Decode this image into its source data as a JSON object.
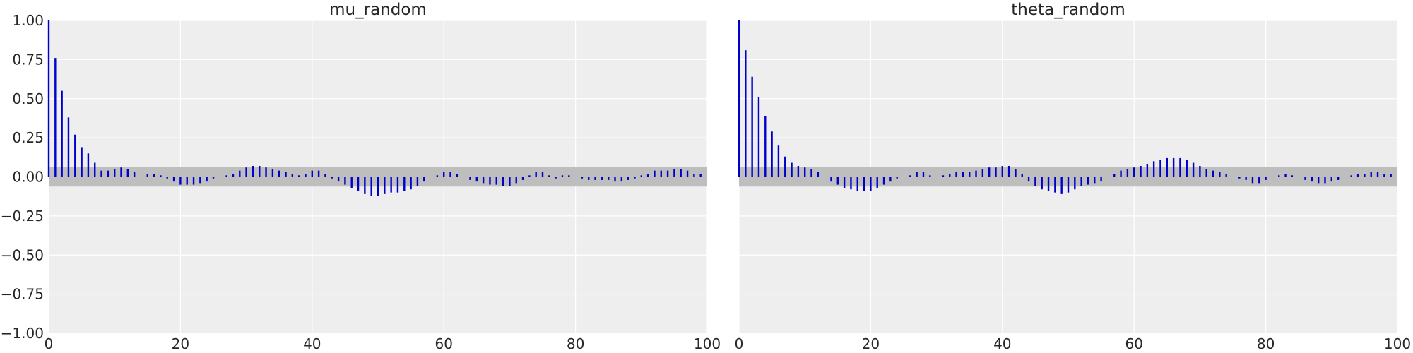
{
  "chart_data": [
    {
      "type": "bar",
      "title": "mu_random",
      "xlabel": "",
      "ylabel": "",
      "xlim": [
        0,
        100
      ],
      "ylim": [
        -1.0,
        1.0
      ],
      "xticks": [
        "0",
        "20",
        "40",
        "60",
        "80",
        "100"
      ],
      "yticks": [
        "−1.00",
        "−0.75",
        "−0.50",
        "−0.25",
        "0.00",
        "0.25",
        "0.50",
        "0.75",
        "1.00"
      ],
      "grid": true,
      "confidence_band": [
        -0.062,
        0.062
      ],
      "x": [
        0,
        1,
        2,
        3,
        4,
        5,
        6,
        7,
        8,
        9,
        10,
        11,
        12,
        13,
        14,
        15,
        16,
        17,
        18,
        19,
        20,
        21,
        22,
        23,
        24,
        25,
        26,
        27,
        28,
        29,
        30,
        31,
        32,
        33,
        34,
        35,
        36,
        37,
        38,
        39,
        40,
        41,
        42,
        43,
        44,
        45,
        46,
        47,
        48,
        49,
        50,
        51,
        52,
        53,
        54,
        55,
        56,
        57,
        58,
        59,
        60,
        61,
        62,
        63,
        64,
        65,
        66,
        67,
        68,
        69,
        70,
        71,
        72,
        73,
        74,
        75,
        76,
        77,
        78,
        79,
        80,
        81,
        82,
        83,
        84,
        85,
        86,
        87,
        88,
        89,
        90,
        91,
        92,
        93,
        94,
        95,
        96,
        97,
        98,
        99
      ],
      "values": [
        1.0,
        0.76,
        0.55,
        0.38,
        0.27,
        0.19,
        0.15,
        0.09,
        0.04,
        0.04,
        0.05,
        0.06,
        0.05,
        0.03,
        0.0,
        0.02,
        0.02,
        0.01,
        -0.01,
        -0.03,
        -0.05,
        -0.05,
        -0.05,
        -0.04,
        -0.03,
        -0.01,
        0.0,
        0.01,
        0.02,
        0.04,
        0.06,
        0.07,
        0.07,
        0.06,
        0.05,
        0.04,
        0.03,
        0.02,
        0.01,
        0.02,
        0.04,
        0.04,
        0.02,
        -0.01,
        -0.03,
        -0.05,
        -0.07,
        -0.09,
        -0.11,
        -0.12,
        -0.12,
        -0.11,
        -0.1,
        -0.1,
        -0.09,
        -0.08,
        -0.06,
        -0.03,
        0.0,
        0.01,
        0.03,
        0.03,
        0.02,
        0.0,
        -0.02,
        -0.03,
        -0.04,
        -0.05,
        -0.05,
        -0.06,
        -0.06,
        -0.04,
        -0.02,
        0.01,
        0.03,
        0.03,
        0.01,
        -0.01,
        0.01,
        0.01,
        0.0,
        -0.01,
        -0.02,
        -0.02,
        -0.02,
        -0.02,
        -0.03,
        -0.03,
        -0.02,
        -0.01,
        0.01,
        0.02,
        0.04,
        0.04,
        0.04,
        0.05,
        0.05,
        0.04,
        0.02,
        0.02
      ]
    },
    {
      "type": "bar",
      "title": "theta_random",
      "xlabel": "",
      "ylabel": "",
      "xlim": [
        0,
        100
      ],
      "ylim": [
        -1.0,
        1.0
      ],
      "xticks": [
        "0",
        "20",
        "40",
        "60",
        "80",
        "100"
      ],
      "grid": true,
      "confidence_band": [
        -0.062,
        0.062
      ],
      "x": [
        0,
        1,
        2,
        3,
        4,
        5,
        6,
        7,
        8,
        9,
        10,
        11,
        12,
        13,
        14,
        15,
        16,
        17,
        18,
        19,
        20,
        21,
        22,
        23,
        24,
        25,
        26,
        27,
        28,
        29,
        30,
        31,
        32,
        33,
        34,
        35,
        36,
        37,
        38,
        39,
        40,
        41,
        42,
        43,
        44,
        45,
        46,
        47,
        48,
        49,
        50,
        51,
        52,
        53,
        54,
        55,
        56,
        57,
        58,
        59,
        60,
        61,
        62,
        63,
        64,
        65,
        66,
        67,
        68,
        69,
        70,
        71,
        72,
        73,
        74,
        75,
        76,
        77,
        78,
        79,
        80,
        81,
        82,
        83,
        84,
        85,
        86,
        87,
        88,
        89,
        90,
        91,
        92,
        93,
        94,
        95,
        96,
        97,
        98,
        99
      ],
      "values": [
        1.0,
        0.81,
        0.64,
        0.51,
        0.39,
        0.29,
        0.2,
        0.13,
        0.09,
        0.07,
        0.06,
        0.05,
        0.03,
        0.0,
        -0.03,
        -0.05,
        -0.07,
        -0.08,
        -0.09,
        -0.09,
        -0.09,
        -0.07,
        -0.05,
        -0.03,
        -0.01,
        0.0,
        0.01,
        0.03,
        0.03,
        0.01,
        0.0,
        0.01,
        0.02,
        0.03,
        0.03,
        0.03,
        0.04,
        0.05,
        0.06,
        0.06,
        0.07,
        0.07,
        0.05,
        0.02,
        -0.03,
        -0.06,
        -0.08,
        -0.09,
        -0.1,
        -0.11,
        -0.1,
        -0.08,
        -0.06,
        -0.05,
        -0.04,
        -0.03,
        0.0,
        0.02,
        0.04,
        0.05,
        0.06,
        0.07,
        0.08,
        0.1,
        0.11,
        0.12,
        0.12,
        0.12,
        0.11,
        0.09,
        0.07,
        0.05,
        0.04,
        0.03,
        0.02,
        0.0,
        -0.01,
        -0.02,
        -0.04,
        -0.04,
        -0.02,
        0.0,
        0.01,
        0.02,
        0.01,
        0.0,
        -0.02,
        -0.03,
        -0.04,
        -0.04,
        -0.03,
        -0.02,
        0.0,
        0.01,
        0.02,
        0.02,
        0.03,
        0.03,
        0.02,
        0.02
      ]
    }
  ]
}
